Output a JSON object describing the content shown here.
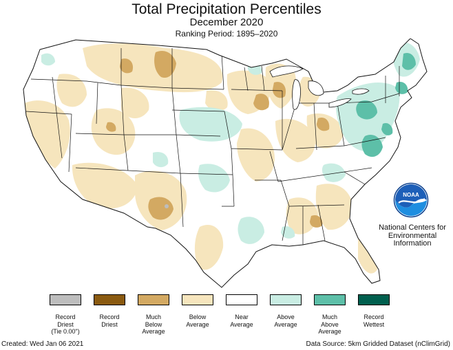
{
  "header": {
    "title": "Total Precipitation Percentiles",
    "subtitle": "December 2020",
    "ranking_period": "Ranking Period: 1895–2020"
  },
  "agency": {
    "logo_text": "NOAA",
    "name_line1": "National Centers for",
    "name_line2": "Environmental",
    "name_line3": "Information"
  },
  "legend": {
    "items": [
      {
        "label_lines": [
          "Record",
          "Driest",
          "(Tie 0.00\")"
        ],
        "color": "#bdbdbd"
      },
      {
        "label_lines": [
          "Record",
          "Driest"
        ],
        "color": "#8a5a10"
      },
      {
        "label_lines": [
          "Much",
          "Below",
          "Average"
        ],
        "color": "#d3a962"
      },
      {
        "label_lines": [
          "Below",
          "Average"
        ],
        "color": "#f6e5bd"
      },
      {
        "label_lines": [
          "Near",
          "Average"
        ],
        "color": "#ffffff"
      },
      {
        "label_lines": [
          "Above",
          "Average"
        ],
        "color": "#c9ede3"
      },
      {
        "label_lines": [
          "Much",
          "Above",
          "Average"
        ],
        "color": "#5dbfa8"
      },
      {
        "label_lines": [
          "Record",
          "Wettest"
        ],
        "color": "#005f4e"
      }
    ]
  },
  "footer": {
    "created": "Created: Wed Jan 06 2021",
    "source": "Data Source: 5km Gridded Dataset (nClimGrid)"
  },
  "map_colors": {
    "below": "#f6e5bd",
    "much_below": "#d3a962",
    "above": "#c9ede3",
    "much_above": "#5dbfa8",
    "record_driest_tie": "#bdbdbd"
  }
}
